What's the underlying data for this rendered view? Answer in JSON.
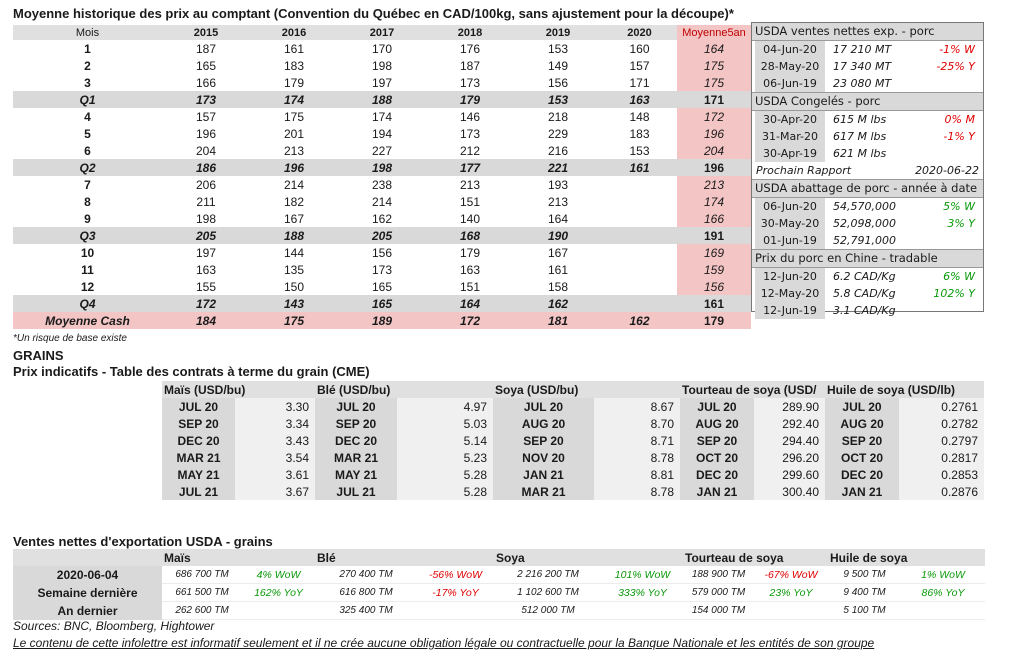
{
  "title": "Moyenne historique des prix au comptant (Convention du Québec en CAD/100kg, sans ajustement pour la découpe)*",
  "price_table": {
    "headers": [
      "Mois",
      "2015",
      "2016",
      "2017",
      "2018",
      "2019",
      "2020",
      "Moyenne5an"
    ],
    "rows": [
      {
        "type": "m",
        "cells": [
          "1",
          "187",
          "161",
          "170",
          "176",
          "153",
          "160",
          "164"
        ]
      },
      {
        "type": "m",
        "cells": [
          "2",
          "165",
          "183",
          "198",
          "187",
          "149",
          "157",
          "175"
        ]
      },
      {
        "type": "m",
        "cells": [
          "3",
          "166",
          "179",
          "197",
          "173",
          "156",
          "171",
          "175"
        ]
      },
      {
        "type": "q",
        "cells": [
          "Q1",
          "173",
          "174",
          "188",
          "179",
          "153",
          "163",
          "171"
        ]
      },
      {
        "type": "m",
        "cells": [
          "4",
          "157",
          "175",
          "174",
          "146",
          "218",
          "148",
          "172"
        ]
      },
      {
        "type": "m",
        "cells": [
          "5",
          "196",
          "201",
          "194",
          "173",
          "229",
          "183",
          "196"
        ]
      },
      {
        "type": "m",
        "cells": [
          "6",
          "204",
          "213",
          "227",
          "212",
          "216",
          "153",
          "204"
        ]
      },
      {
        "type": "q",
        "cells": [
          "Q2",
          "186",
          "196",
          "198",
          "177",
          "221",
          "161",
          "196"
        ]
      },
      {
        "type": "m",
        "cells": [
          "7",
          "206",
          "214",
          "238",
          "213",
          "193",
          "",
          "213"
        ]
      },
      {
        "type": "m",
        "cells": [
          "8",
          "211",
          "182",
          "214",
          "151",
          "213",
          "",
          "174"
        ]
      },
      {
        "type": "m",
        "cells": [
          "9",
          "198",
          "167",
          "162",
          "140",
          "164",
          "",
          "166"
        ]
      },
      {
        "type": "q",
        "cells": [
          "Q3",
          "205",
          "188",
          "205",
          "168",
          "190",
          "",
          "191"
        ]
      },
      {
        "type": "m",
        "cells": [
          "10",
          "197",
          "144",
          "156",
          "179",
          "167",
          "",
          "169"
        ]
      },
      {
        "type": "m",
        "cells": [
          "11",
          "163",
          "135",
          "173",
          "163",
          "161",
          "",
          "159"
        ]
      },
      {
        "type": "m",
        "cells": [
          "12",
          "155",
          "150",
          "165",
          "151",
          "158",
          "",
          "156"
        ]
      },
      {
        "type": "q",
        "cells": [
          "Q4",
          "172",
          "143",
          "165",
          "164",
          "162",
          "",
          "161"
        ]
      },
      {
        "type": "avg",
        "cells": [
          "Moyenne Cash",
          "184",
          "175",
          "189",
          "172",
          "181",
          "162",
          "179"
        ]
      }
    ],
    "note": "*Un risque de base existe"
  },
  "usda": {
    "exports_head": "USDA ventes nettes exp. - porc",
    "exports": [
      {
        "date": "04-Jun-20",
        "value": "17 210  MT",
        "change": "-1% W",
        "tone": "red"
      },
      {
        "date": "28-May-20",
        "value": "17 340  MT",
        "change": "-25% Y",
        "tone": "red"
      },
      {
        "date": "06-Jun-19",
        "value": "23 080  MT",
        "change": "",
        "tone": ""
      }
    ],
    "frozen_head": "USDA Congelés - porc",
    "frozen": [
      {
        "date": "30-Apr-20",
        "value": "615 M lbs",
        "change": "0% M",
        "tone": "red"
      },
      {
        "date": "31-Mar-20",
        "value": "617 M lbs",
        "change": "-1% Y",
        "tone": "red"
      },
      {
        "date": "30-Apr-19",
        "value": "621 M lbs",
        "change": "",
        "tone": ""
      }
    ],
    "next_report_label": "Prochain Rapport",
    "next_report_date": "2020-06-22",
    "slaughter_head": "USDA abattage de porc - année à date",
    "slaughter": [
      {
        "date": "06-Jun-20",
        "value": "54,570,000",
        "change": "5% W",
        "tone": "green"
      },
      {
        "date": "30-May-20",
        "value": "52,098,000",
        "change": "3% Y",
        "tone": "green"
      },
      {
        "date": "01-Jun-19",
        "value": "52,791,000",
        "change": "",
        "tone": ""
      }
    ],
    "china_head": "Prix du porc en Chine - tradable",
    "china": [
      {
        "date": "12-Jun-20",
        "value": "6.2 CAD/Kg",
        "change": "6% W",
        "tone": "green"
      },
      {
        "date": "12-May-20",
        "value": "5.8 CAD/Kg",
        "change": "102% Y",
        "tone": "green"
      },
      {
        "date": "12-Jun-19",
        "value": "3.1 CAD/Kg",
        "change": "",
        "tone": ""
      }
    ]
  },
  "grains": {
    "heading": "GRAINS",
    "subheading": "Prix indicatifs - Table des contrats à terme du grain (CME)",
    "commodities": [
      "Maïs (USD/bu)",
      "Blé (USD/bu)",
      "Soya (USD/bu)",
      "Tourteau de soya (USD/",
      "Huile de soya (USD/lb)"
    ],
    "rows": [
      [
        [
          "JUL 20",
          "3.30"
        ],
        [
          "JUL 20",
          "4.97"
        ],
        [
          "JUL 20",
          "8.67"
        ],
        [
          "JUL 20",
          "289.90"
        ],
        [
          "JUL 20",
          "0.2761"
        ]
      ],
      [
        [
          "SEP 20",
          "3.34"
        ],
        [
          "SEP 20",
          "5.03"
        ],
        [
          "AUG 20",
          "8.70"
        ],
        [
          "AUG 20",
          "292.40"
        ],
        [
          "AUG 20",
          "0.2782"
        ]
      ],
      [
        [
          "DEC 20",
          "3.43"
        ],
        [
          "DEC 20",
          "5.14"
        ],
        [
          "SEP 20",
          "8.71"
        ],
        [
          "SEP 20",
          "294.40"
        ],
        [
          "SEP 20",
          "0.2797"
        ]
      ],
      [
        [
          "MAR 21",
          "3.54"
        ],
        [
          "MAR 21",
          "5.23"
        ],
        [
          "NOV 20",
          "8.78"
        ],
        [
          "OCT 20",
          "296.20"
        ],
        [
          "OCT 20",
          "0.2817"
        ]
      ],
      [
        [
          "MAY 21",
          "3.61"
        ],
        [
          "MAY 21",
          "5.28"
        ],
        [
          "JAN 21",
          "8.81"
        ],
        [
          "DEC 20",
          "299.60"
        ],
        [
          "DEC 20",
          "0.2853"
        ]
      ],
      [
        [
          "JUL 21",
          "3.67"
        ],
        [
          "JUL 21",
          "5.28"
        ],
        [
          "MAR 21",
          "8.78"
        ],
        [
          "JAN 21",
          "300.40"
        ],
        [
          "JAN 21",
          "0.2876"
        ]
      ]
    ]
  },
  "exports": {
    "heading": "Ventes nettes d'exportation USDA - grains",
    "commodities": [
      "Maïs",
      "Blé",
      "Soya",
      "Tourteau de soya",
      "Huile de soya"
    ],
    "rows": [
      {
        "label": "2020-06-04",
        "cells": [
          [
            "686 700 TM",
            "4% WoW",
            "green"
          ],
          [
            "270 400 TM",
            "-56% WoW",
            "red"
          ],
          [
            "2 216 200 TM",
            "101% WoW",
            "green"
          ],
          [
            "188 900 TM",
            "-67% WoW",
            "red"
          ],
          [
            "9 500 TM",
            "1% WoW",
            "green"
          ]
        ]
      },
      {
        "label": "Semaine dernière",
        "cells": [
          [
            "661 500 TM",
            "162% YoY",
            "green"
          ],
          [
            "616 800 TM",
            "-17% YoY",
            "red"
          ],
          [
            "1 102 600 TM",
            "333% YoY",
            "green"
          ],
          [
            "579 000 TM",
            "23% YoY",
            "green"
          ],
          [
            "9 400 TM",
            "86% YoY",
            "green"
          ]
        ]
      },
      {
        "label": "An dernier",
        "cells": [
          [
            "262 600 TM",
            "",
            ""
          ],
          [
            "325 400 TM",
            "",
            ""
          ],
          [
            "512 000 TM",
            "",
            ""
          ],
          [
            "154 000 TM",
            "",
            ""
          ],
          [
            "5 100 TM",
            "",
            ""
          ]
        ]
      }
    ]
  },
  "sources": "Sources: BNC, Bloomberg, Hightower",
  "disclaimer": "Le contenu de cette infolettre est informatif seulement et il ne crée aucune obligation légale ou contractuelle pour la Banque Nationale et les entités de son groupe"
}
